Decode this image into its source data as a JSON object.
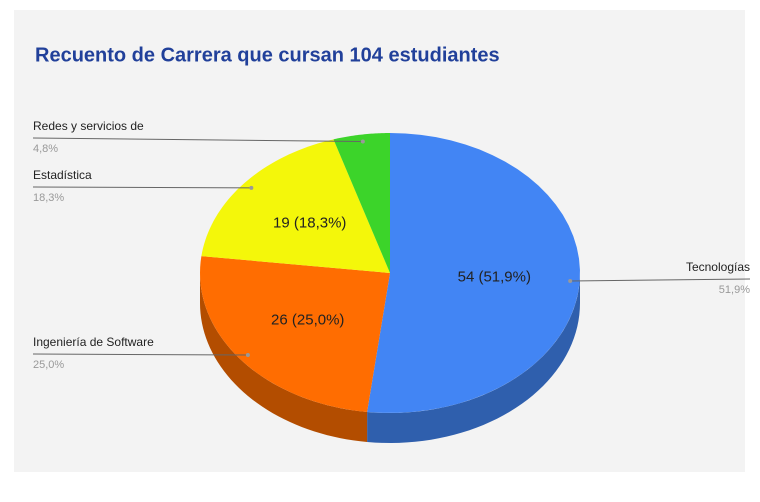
{
  "chart_data": {
    "type": "pie3d",
    "title": "Recuento de Carrera que cursan 104 estudiantes",
    "categories": [
      "Tecnologías",
      "Ingeniería de Software",
      "Estadística",
      "Redes y servicios de"
    ],
    "values": [
      54,
      26,
      19,
      5
    ],
    "value_labels": [
      "54 (51,9%)",
      "26 (25,0%)",
      "19 (18,3%)",
      null
    ],
    "percent_labels": [
      "51,9%",
      "25,0%",
      "18,3%",
      "4,8%"
    ],
    "colors": [
      "#4285f4",
      "#ff6d01",
      "#f4f70a",
      "#3cd42a"
    ],
    "side_colors": [
      "#2f5fad",
      "#b34d00",
      "#aaad07",
      "#2a951d"
    ]
  }
}
